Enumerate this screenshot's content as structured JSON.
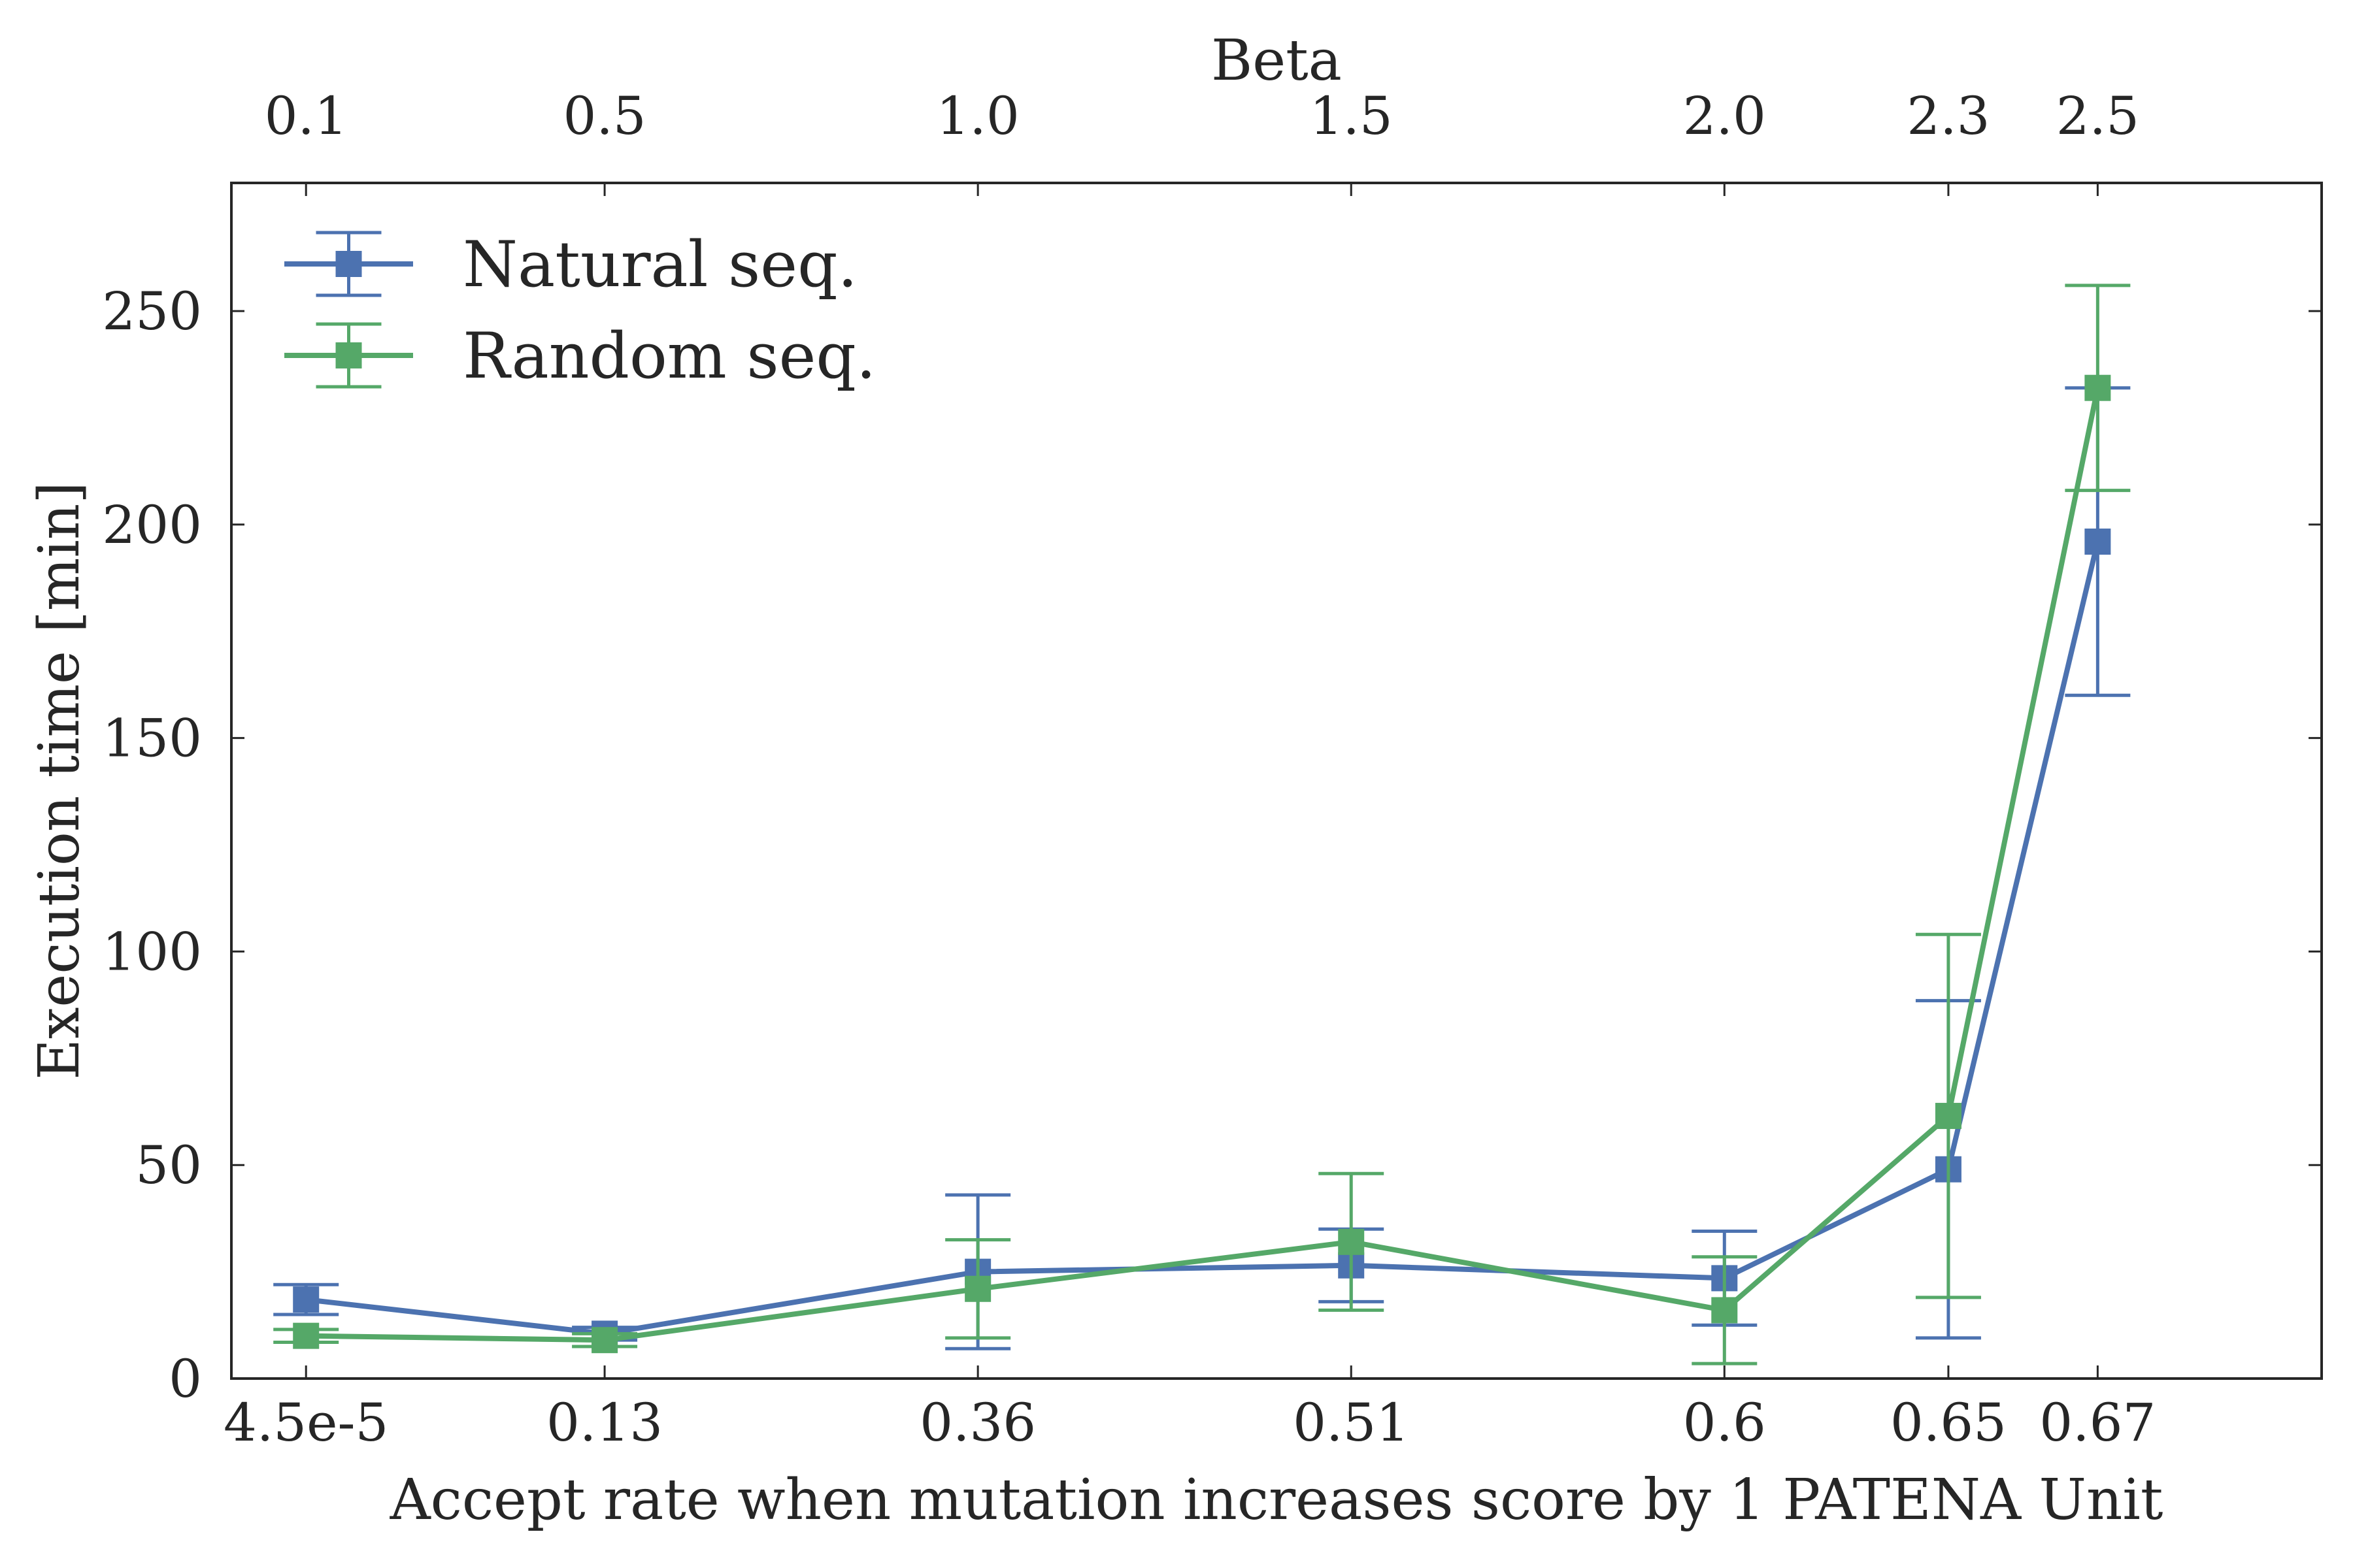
{
  "chart_data": {
    "type": "line",
    "xlabel": "Accept rate when mutation increases score by 1 PATENA Unit",
    "ylabel": "Execution time [min]",
    "x2label": "Beta",
    "beta_values": [
      0.1,
      0.5,
      1.0,
      1.5,
      2.0,
      2.3,
      2.5
    ],
    "x_tick_labels": [
      "4.5e-5",
      "0.13",
      "0.36",
      "0.51",
      "0.6",
      "0.65",
      "0.67"
    ],
    "x2_tick_labels": [
      "0.1",
      "0.5",
      "1.0",
      "1.5",
      "2.0",
      "2.3",
      "2.5"
    ],
    "xlim": [
      0.0,
      2.8
    ],
    "ylim": [
      0,
      280
    ],
    "y_ticks": [
      0,
      50,
      100,
      150,
      200,
      250
    ],
    "y_tick_labels": [
      "0",
      "50",
      "100",
      "150",
      "200",
      "250"
    ],
    "grid": false,
    "legend_position": "top-left",
    "series": [
      {
        "name": "Natural seq.",
        "color": "#4c72b0",
        "marker": "square",
        "values": [
          18.5,
          10.5,
          25,
          26.5,
          23.5,
          49,
          196
        ],
        "errors": [
          3.5,
          1.5,
          18,
          8.5,
          11,
          39.5,
          36
        ]
      },
      {
        "name": "Random seq.",
        "color": "#55a868",
        "marker": "square",
        "values": [
          10,
          9,
          21,
          32,
          16,
          61.5,
          232
        ],
        "errors": [
          1.5,
          1.5,
          11.5,
          16,
          12.5,
          42.5,
          24
        ]
      }
    ]
  }
}
